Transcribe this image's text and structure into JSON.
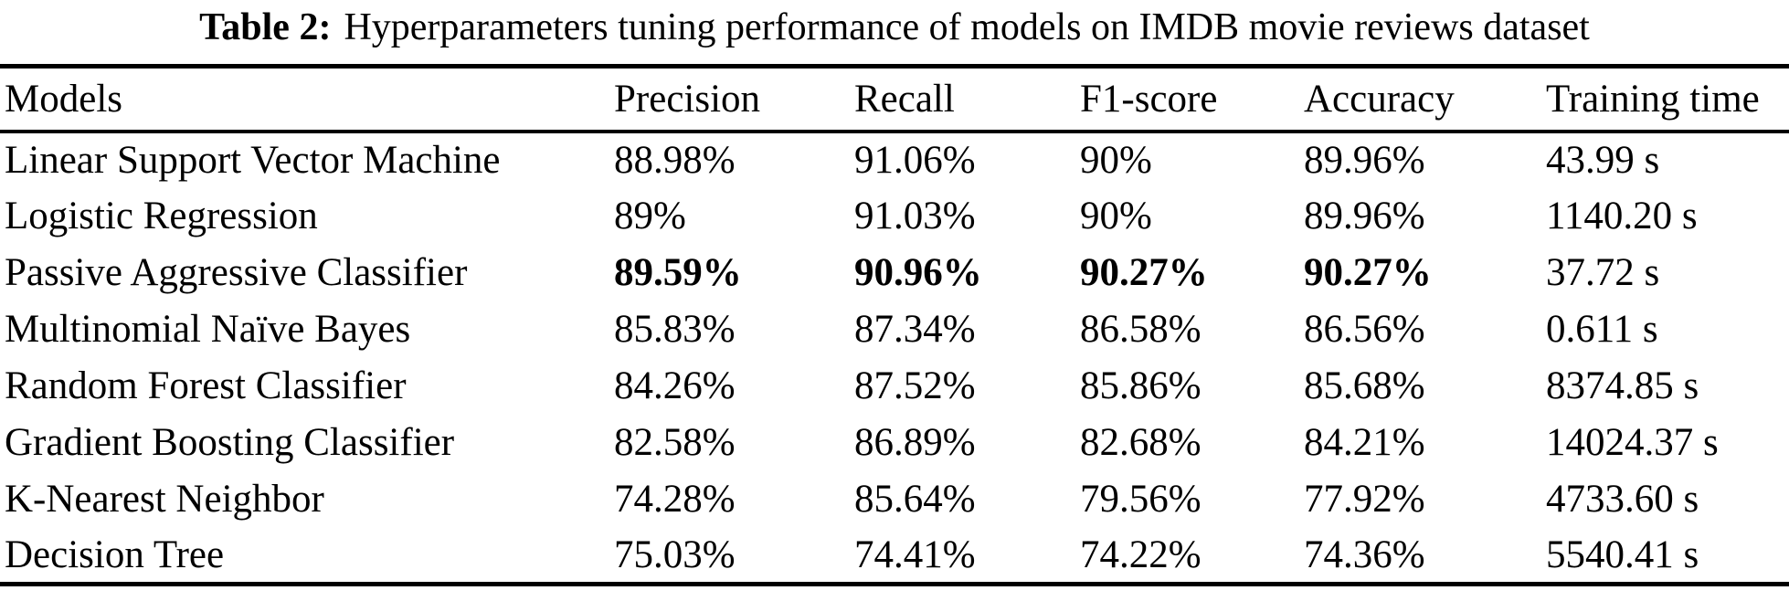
{
  "caption": {
    "label": "Table 2:",
    "text": "Hyperparameters tuning performance of models on IMDB movie reviews dataset"
  },
  "table": {
    "columns": [
      "Models",
      "Precision",
      "Recall",
      "F1-score",
      "Accuracy",
      "Training time"
    ],
    "rows": [
      {
        "model": "Linear Support Vector Machine",
        "precision": "88.98%",
        "recall": "91.06%",
        "f1_score": "90%",
        "accuracy": "89.96%",
        "training_time": "43.99 s",
        "bold_metrics": false
      },
      {
        "model": "Logistic Regression",
        "precision": "89%",
        "recall": "91.03%",
        "f1_score": "90%",
        "accuracy": "89.96%",
        "training_time": "1140.20 s",
        "bold_metrics": false
      },
      {
        "model": "Passive Aggressive Classifier",
        "precision": "89.59%",
        "recall": "90.96%",
        "f1_score": "90.27%",
        "accuracy": "90.27%",
        "training_time": "37.72 s",
        "bold_metrics": true
      },
      {
        "model": "Multinomial Naïve Bayes",
        "precision": "85.83%",
        "recall": "87.34%",
        "f1_score": "86.58%",
        "accuracy": "86.56%",
        "training_time": "0.611 s",
        "bold_metrics": false
      },
      {
        "model": "Random Forest Classifier",
        "precision": "84.26%",
        "recall": "87.52%",
        "f1_score": "85.86%",
        "accuracy": "85.68%",
        "training_time": "8374.85 s",
        "bold_metrics": false
      },
      {
        "model": "Gradient Boosting Classifier",
        "precision": "82.58%",
        "recall": "86.89%",
        "f1_score": "82.68%",
        "accuracy": "84.21%",
        "training_time": "14024.37 s",
        "bold_metrics": false
      },
      {
        "model": "K-Nearest Neighbor",
        "precision": "74.28%",
        "recall": "85.64%",
        "f1_score": "79.56%",
        "accuracy": "77.92%",
        "training_time": "4733.60 s",
        "bold_metrics": false
      },
      {
        "model": "Decision Tree",
        "precision": "75.03%",
        "recall": "74.41%",
        "f1_score": "74.22%",
        "accuracy": "74.36%",
        "training_time": "5540.41 s",
        "bold_metrics": false
      }
    ]
  }
}
